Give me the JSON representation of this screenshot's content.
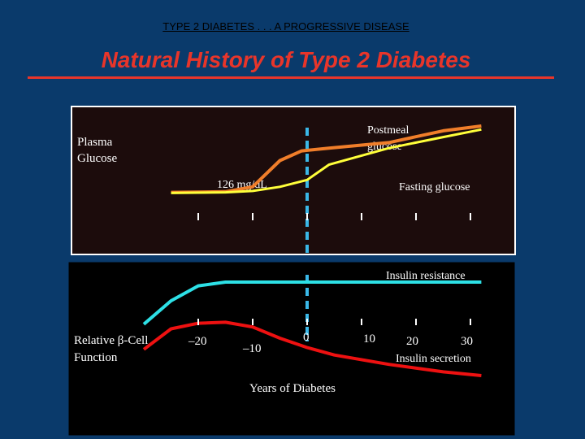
{
  "header": "TYPE 2 DIABETES . . . A PROGRESSIVE DISEASE",
  "title": "Natural History of Type 2 Diabetes",
  "colors": {
    "background": "#0a3a6b",
    "title": "#e8352a",
    "panel": "#1c0c0c",
    "postmeal": "#f07e2a",
    "fasting": "#ffff3a",
    "insulin_resistance": "#2de0e6",
    "insulin_secretion": "#ee1111",
    "diagnosis_line": "#3ab8e8"
  },
  "chart_data": [
    {
      "type": "line",
      "panel": "top",
      "ylabel_lines": [
        "Plasma",
        "Glucose"
      ],
      "threshold_label": "126 mg/dL",
      "x_ticks": [
        -20,
        -10,
        0,
        10,
        20,
        30
      ],
      "series": [
        {
          "name_lines": [
            "Postmeal",
            "glucose"
          ],
          "x": [
            -25,
            -15,
            -10,
            -5,
            -1,
            4,
            15,
            25,
            32
          ],
          "y": [
            0.04,
            0.05,
            0.12,
            0.5,
            0.64,
            0.68,
            0.76,
            0.93,
            1.0
          ]
        },
        {
          "name_lines": [
            "Fasting glucose"
          ],
          "x": [
            -25,
            -15,
            -10,
            -5,
            0,
            4,
            15,
            25,
            32
          ],
          "y": [
            0.03,
            0.04,
            0.06,
            0.12,
            0.22,
            0.44,
            0.68,
            0.84,
            0.95
          ]
        }
      ]
    },
    {
      "type": "line",
      "panel": "bottom",
      "ylabel_lines": [
        "Relative β-Cell",
        "Function"
      ],
      "xlabel": "Years of Diabetes",
      "x_ticks": [
        -20,
        -10,
        0,
        10,
        20,
        30
      ],
      "tick_labels": [
        "–20",
        "–10",
        "0",
        "10",
        "20",
        "30"
      ],
      "series": [
        {
          "name_lines": [
            "Insulin resistance"
          ],
          "x": [
            -30,
            -25,
            -20,
            -15,
            -5,
            5,
            32
          ],
          "y": [
            0.55,
            0.8,
            0.96,
            1.0,
            1.0,
            1.0,
            1.0
          ]
        },
        {
          "name_lines": [
            "Insulin secretion"
          ],
          "x": [
            -30,
            -25,
            -20,
            -15,
            -10,
            -5,
            0,
            5,
            15,
            25,
            32
          ],
          "y": [
            0.28,
            0.5,
            0.56,
            0.57,
            0.52,
            0.4,
            0.3,
            0.22,
            0.12,
            0.04,
            0.0
          ]
        }
      ]
    }
  ]
}
